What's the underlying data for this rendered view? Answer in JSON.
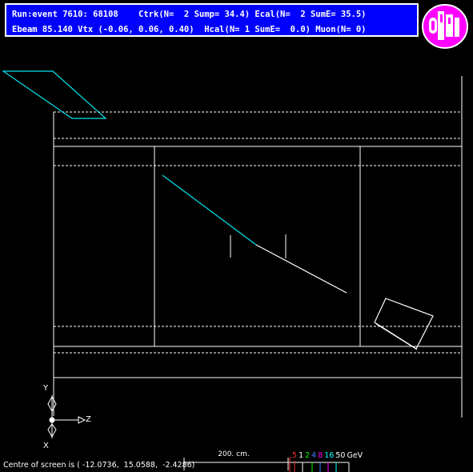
{
  "header": {
    "line1": "Run:event 7610: 68108    Ctrk(N=  2 Sump= 34.4) Ecal(N=  2 SumE= 35.5)",
    "line2": "Ebeam 85.140 Vtx (-0.06, 0.06, 0.40)  Hcal(N= 1 SumE=  0.0) Muon(N= 0)"
  },
  "logo": {
    "text": "OPAL",
    "ring_color": "#ff00ff",
    "fill_color": "#ffffff"
  },
  "axes": {
    "y_label": "Y",
    "z_label": "Z",
    "x_label": "X"
  },
  "scale": {
    "label": "200. cm."
  },
  "energy_legend": {
    "items": [
      {
        "text": ".5",
        "color": "#ff3030"
      },
      {
        "text": "1",
        "color": "#ffffff"
      },
      {
        "text": "2",
        "color": "#00ff00"
      },
      {
        "text": "4",
        "color": "#4080ff"
      },
      {
        "text": "8",
        "color": "#ff00ff"
      },
      {
        "text": "16",
        "color": "#00ffff"
      },
      {
        "text": "50",
        "color": "#ffffff"
      },
      {
        "text": "GeV",
        "color": "#ffffff"
      }
    ]
  },
  "footer": {
    "centre_text": "Centre of screen is ( -12.0736,  15.0588,  -2.4286)"
  },
  "colors": {
    "track_cyan": "#00e5ee",
    "detector_white": "#ffffff",
    "header_bg": "#0000ff"
  }
}
